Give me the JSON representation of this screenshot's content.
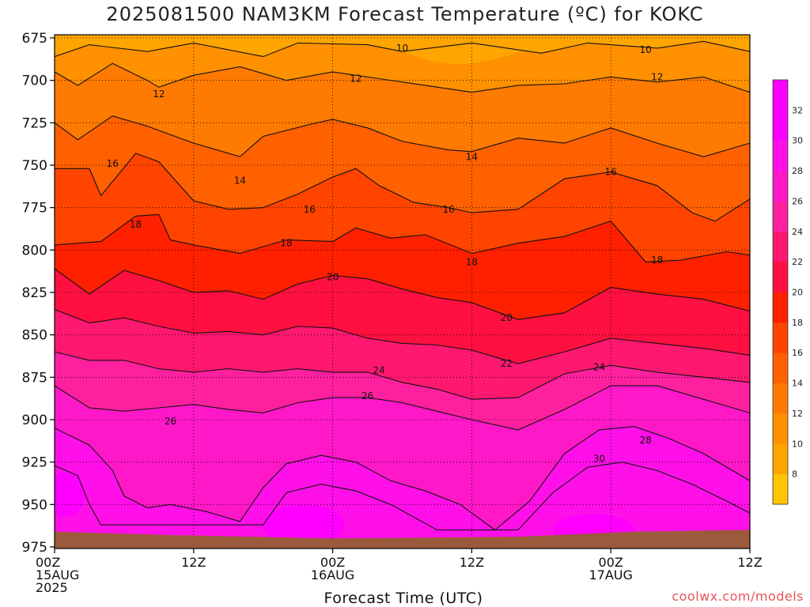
{
  "title": "2025081500 NAM3KM Forecast Temperature (ºC) for KOKC",
  "xlabel": "Forecast Time (UTC)",
  "credit": "coolwx.com/models",
  "chart_data": {
    "type": "contour",
    "title": "2025081500 NAM3KM Forecast Temperature (ºC) for KOKC",
    "xlabel": "Forecast Time (UTC)",
    "ylabel": "",
    "y_ticks": [
      675,
      700,
      725,
      750,
      775,
      800,
      825,
      850,
      875,
      900,
      925,
      950,
      975
    ],
    "ylim": [
      975,
      675
    ],
    "x_ticks": [
      {
        "hour": 0,
        "lines": [
          "00Z",
          "15AUG",
          "2025"
        ]
      },
      {
        "hour": 12,
        "lines": [
          "12Z"
        ]
      },
      {
        "hour": 24,
        "lines": [
          "00Z",
          "16AUG"
        ]
      },
      {
        "hour": 36,
        "lines": [
          "12Z"
        ]
      },
      {
        "hour": 48,
        "lines": [
          "00Z",
          "17AUG"
        ]
      },
      {
        "hour": 60,
        "lines": [
          "12Z"
        ]
      }
    ],
    "xlim": [
      0,
      60
    ],
    "colorbar": {
      "levels": [
        8,
        10,
        12,
        14,
        16,
        18,
        20,
        22,
        24,
        26,
        28,
        30,
        32
      ],
      "colors": [
        "#ffc400",
        "#ffa500",
        "#ff9000",
        "#ff7a00",
        "#ff6000",
        "#ff4400",
        "#ff2000",
        "#ff1040",
        "#ff1870",
        "#ff20a0",
        "#ff18c8",
        "#ff10e8",
        "#ff00ff",
        "#ff00ff"
      ]
    },
    "contours": [
      {
        "level": 10,
        "points": [
          [
            0,
            686
          ],
          [
            3,
            679
          ],
          [
            8,
            683
          ],
          [
            12,
            678
          ],
          [
            18,
            686
          ],
          [
            21,
            678
          ],
          [
            27,
            679
          ],
          [
            30,
            683
          ],
          [
            36,
            678
          ],
          [
            42,
            684
          ],
          [
            46,
            678
          ],
          [
            52,
            681
          ],
          [
            56,
            677
          ],
          [
            60,
            683
          ]
        ],
        "label_at": [
          [
            30,
            681
          ],
          [
            51,
            682
          ]
        ]
      },
      {
        "level": 12,
        "points": [
          [
            0,
            695
          ],
          [
            2,
            703
          ],
          [
            5,
            690
          ],
          [
            8,
            700
          ],
          [
            9,
            704
          ],
          [
            12,
            697
          ],
          [
            16,
            692
          ],
          [
            20,
            700
          ],
          [
            24,
            695
          ],
          [
            28,
            699
          ],
          [
            32,
            703
          ],
          [
            36,
            707
          ],
          [
            40,
            703
          ],
          [
            44,
            702
          ],
          [
            48,
            698
          ],
          [
            52,
            701
          ],
          [
            56,
            698
          ],
          [
            60,
            707
          ]
        ],
        "label_at": [
          [
            9,
            708
          ],
          [
            26,
            699
          ],
          [
            52,
            698
          ]
        ]
      },
      {
        "level": 14,
        "points": [
          [
            0,
            725
          ],
          [
            2,
            735
          ],
          [
            5,
            721
          ],
          [
            8,
            727
          ],
          [
            12,
            737
          ],
          [
            14,
            741
          ],
          [
            16,
            745
          ],
          [
            18,
            733
          ],
          [
            22,
            726
          ],
          [
            24,
            723
          ],
          [
            27,
            728
          ],
          [
            30,
            736
          ],
          [
            34,
            741
          ],
          [
            36,
            742
          ],
          [
            40,
            734
          ],
          [
            44,
            737
          ],
          [
            48,
            728
          ],
          [
            52,
            737
          ],
          [
            56,
            745
          ],
          [
            60,
            737
          ]
        ],
        "label_at": [
          [
            16,
            759
          ],
          [
            36,
            745
          ]
        ]
      },
      {
        "level": 16,
        "points": [
          [
            0,
            752
          ],
          [
            3,
            752
          ],
          [
            4,
            768
          ],
          [
            7,
            743
          ],
          [
            9,
            748
          ],
          [
            12,
            771
          ],
          [
            15,
            776
          ],
          [
            18,
            775
          ],
          [
            21,
            767
          ],
          [
            24,
            757
          ],
          [
            26,
            752
          ],
          [
            28,
            762
          ],
          [
            31,
            772
          ],
          [
            34,
            775
          ],
          [
            36,
            778
          ],
          [
            40,
            776
          ],
          [
            44,
            758
          ],
          [
            48,
            754
          ],
          [
            52,
            762
          ],
          [
            55,
            778
          ],
          [
            57,
            783
          ],
          [
            60,
            770
          ]
        ],
        "label_at": [
          [
            5,
            749
          ],
          [
            22,
            776
          ],
          [
            34,
            776
          ],
          [
            48,
            754
          ]
        ]
      },
      {
        "level": 18,
        "points": [
          [
            0,
            797
          ],
          [
            4,
            795
          ],
          [
            7,
            780
          ],
          [
            9,
            779
          ],
          [
            10,
            794
          ],
          [
            12,
            797
          ],
          [
            16,
            802
          ],
          [
            20,
            794
          ],
          [
            24,
            795
          ],
          [
            26,
            787
          ],
          [
            29,
            793
          ],
          [
            32,
            791
          ],
          [
            36,
            802
          ],
          [
            40,
            796
          ],
          [
            44,
            792
          ],
          [
            48,
            783
          ],
          [
            51,
            807
          ],
          [
            54,
            806
          ],
          [
            58,
            801
          ],
          [
            60,
            803
          ]
        ],
        "label_at": [
          [
            7,
            785
          ],
          [
            20,
            796
          ],
          [
            36,
            807
          ],
          [
            52,
            806
          ]
        ]
      },
      {
        "level": 20,
        "points": [
          [
            0,
            811
          ],
          [
            3,
            826
          ],
          [
            6,
            812
          ],
          [
            9,
            818
          ],
          [
            12,
            825
          ],
          [
            15,
            824
          ],
          [
            18,
            829
          ],
          [
            21,
            820
          ],
          [
            24,
            815
          ],
          [
            27,
            817
          ],
          [
            30,
            823
          ],
          [
            33,
            828
          ],
          [
            36,
            831
          ],
          [
            40,
            841
          ],
          [
            44,
            837
          ],
          [
            48,
            822
          ],
          [
            52,
            826
          ],
          [
            56,
            829
          ],
          [
            60,
            836
          ]
        ],
        "label_at": [
          [
            24,
            816
          ],
          [
            39,
            840
          ]
        ]
      },
      {
        "level": 22,
        "points": [
          [
            0,
            835
          ],
          [
            3,
            843
          ],
          [
            6,
            840
          ],
          [
            9,
            845
          ],
          [
            12,
            849
          ],
          [
            15,
            848
          ],
          [
            18,
            850
          ],
          [
            21,
            845
          ],
          [
            24,
            846
          ],
          [
            27,
            852
          ],
          [
            30,
            855
          ],
          [
            33,
            856
          ],
          [
            36,
            859
          ],
          [
            40,
            867
          ],
          [
            44,
            860
          ],
          [
            48,
            852
          ],
          [
            52,
            855
          ],
          [
            56,
            858
          ],
          [
            60,
            862
          ]
        ],
        "label_at": [
          [
            39,
            867
          ]
        ]
      },
      {
        "level": 24,
        "points": [
          [
            0,
            860
          ],
          [
            3,
            865
          ],
          [
            6,
            865
          ],
          [
            9,
            870
          ],
          [
            12,
            872
          ],
          [
            15,
            870
          ],
          [
            18,
            872
          ],
          [
            21,
            870
          ],
          [
            24,
            872
          ],
          [
            27,
            872
          ],
          [
            30,
            878
          ],
          [
            33,
            882
          ],
          [
            36,
            888
          ],
          [
            40,
            887
          ],
          [
            44,
            873
          ],
          [
            48,
            868
          ],
          [
            52,
            872
          ],
          [
            56,
            875
          ],
          [
            60,
            878
          ]
        ],
        "label_at": [
          [
            28,
            871
          ],
          [
            47,
            869
          ]
        ]
      },
      {
        "level": 26,
        "points": [
          [
            0,
            880
          ],
          [
            3,
            893
          ],
          [
            6,
            895
          ],
          [
            9,
            893
          ],
          [
            12,
            891
          ],
          [
            15,
            894
          ],
          [
            18,
            896
          ],
          [
            21,
            890
          ],
          [
            24,
            887
          ],
          [
            27,
            887
          ],
          [
            30,
            890
          ],
          [
            33,
            895
          ],
          [
            36,
            900
          ],
          [
            40,
            906
          ],
          [
            44,
            894
          ],
          [
            48,
            880
          ],
          [
            52,
            880
          ],
          [
            56,
            888
          ],
          [
            60,
            896
          ]
        ],
        "label_at": [
          [
            10,
            901
          ],
          [
            27,
            886
          ]
        ]
      },
      {
        "level": 28,
        "points": [
          [
            0,
            905
          ],
          [
            3,
            915
          ],
          [
            5,
            930
          ],
          [
            6,
            945
          ],
          [
            8,
            952
          ],
          [
            10,
            950
          ],
          [
            13,
            954
          ],
          [
            16,
            960
          ],
          [
            18,
            940
          ],
          [
            20,
            926
          ],
          [
            23,
            921
          ],
          [
            26,
            925
          ],
          [
            29,
            936
          ],
          [
            32,
            942
          ],
          [
            35,
            950
          ],
          [
            38,
            965
          ],
          [
            41,
            948
          ],
          [
            44,
            920
          ],
          [
            47,
            906
          ],
          [
            50,
            904
          ],
          [
            53,
            911
          ],
          [
            56,
            920
          ],
          [
            60,
            936
          ]
        ],
        "label_at": [
          [
            51,
            912
          ]
        ]
      },
      {
        "level": 30,
        "points": [
          [
            0,
            927
          ],
          [
            2,
            933
          ],
          [
            3,
            950
          ],
          [
            4,
            962
          ],
          [
            18,
            962
          ],
          [
            20,
            943
          ],
          [
            23,
            938
          ],
          [
            26,
            942
          ],
          [
            29,
            950
          ],
          [
            33,
            965
          ],
          [
            40,
            965
          ],
          [
            43,
            943
          ],
          [
            46,
            928
          ],
          [
            49,
            925
          ],
          [
            52,
            930
          ],
          [
            55,
            938
          ],
          [
            58,
            948
          ],
          [
            60,
            955
          ]
        ],
        "label_at": [
          [
            47,
            923
          ]
        ]
      }
    ]
  }
}
